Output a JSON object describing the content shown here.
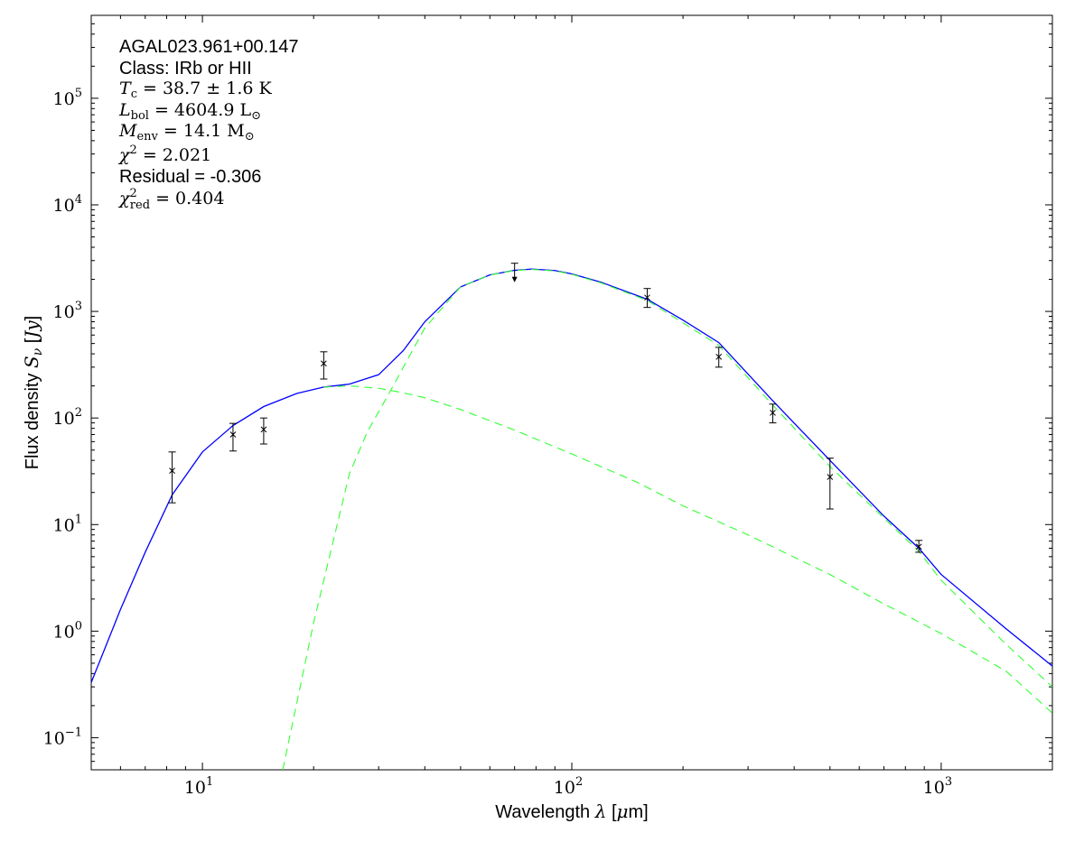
{
  "annotations": {
    "source_name": "AGAL023.961+00.147",
    "class_label": "Class: IRb or HII",
    "tc": {
      "symbol": "T",
      "sub": "c",
      "text": " = 38.7 ± 1.6 K"
    },
    "lbol": {
      "symbol": "L",
      "sub": "bol",
      "text": " = 4604.9 L",
      "unit_sub": "⊙"
    },
    "menv": {
      "symbol": "M",
      "sub": "env",
      "text": " = 14.1 M",
      "unit_sub": "⊙"
    },
    "chi2": {
      "symbol": "χ",
      "sup": "2",
      "text": " = 2.021"
    },
    "residual": "Residual = -0.306",
    "chi2_red": {
      "symbol": "χ",
      "sup": "2",
      "sub": "red",
      "text": " = 0.404"
    }
  },
  "axes": {
    "xlabel_pre": "Wavelength ",
    "xlabel_sym": "λ",
    "xlabel_post": " [",
    "xlabel_unit_sym": "μ",
    "xlabel_unit_post": "m]",
    "ylabel_pre": "Flux density ",
    "ylabel_sym": "S",
    "ylabel_sub": "ν",
    "ylabel_post": " [",
    "ylabel_unit": "Jy",
    "ylabel_close": "]",
    "x_tick_labels": [
      {
        "value": 10,
        "base": "10",
        "exp": "1"
      },
      {
        "value": 100,
        "base": "10",
        "exp": "2"
      },
      {
        "value": 1000,
        "base": "10",
        "exp": "3"
      }
    ],
    "y_tick_labels": [
      {
        "value": 0.1,
        "base": "10",
        "exp": "−1"
      },
      {
        "value": 1,
        "base": "10",
        "exp": "0"
      },
      {
        "value": 10,
        "base": "10",
        "exp": "1"
      },
      {
        "value": 100,
        "base": "10",
        "exp": "2"
      },
      {
        "value": 1000,
        "base": "10",
        "exp": "3"
      },
      {
        "value": 10000,
        "base": "10",
        "exp": "4"
      },
      {
        "value": 100000,
        "base": "10",
        "exp": "5"
      }
    ]
  },
  "colors": {
    "total_fit": "#0000ff",
    "component": "#33ff33",
    "points": "#000000"
  },
  "chart_data": {
    "type": "scatter",
    "xscale": "log",
    "yscale": "log",
    "xlim": [
      5,
      2000
    ],
    "ylim": [
      0.05,
      600000
    ],
    "grid": false,
    "points": [
      {
        "x": 8.28,
        "y": 32,
        "y_low": 16,
        "y_high": 48
      },
      {
        "x": 12.1,
        "y": 70,
        "y_low": 49,
        "y_high": 89
      },
      {
        "x": 14.65,
        "y": 78,
        "y_low": 57,
        "y_high": 100
      },
      {
        "x": 21.3,
        "y": 325,
        "y_low": 232,
        "y_high": 418
      },
      {
        "x": 70,
        "y": 2330,
        "upper_limit": true
      },
      {
        "x": 160,
        "y": 1350,
        "y_low": 1090,
        "y_high": 1640
      },
      {
        "x": 250,
        "y": 375,
        "y_low": 300,
        "y_high": 460
      },
      {
        "x": 350,
        "y": 112,
        "y_low": 90,
        "y_high": 135
      },
      {
        "x": 500,
        "y": 28,
        "y_low": 14,
        "y_high": 42
      },
      {
        "x": 870,
        "y": 6.2,
        "y_low": 5.5,
        "y_high": 7.1
      }
    ],
    "series": [
      {
        "style": "solid",
        "x": [
          5,
          6,
          7,
          8.28,
          10,
          12.1,
          14.65,
          18,
          21.3,
          25,
          30,
          35,
          40,
          50,
          60,
          70,
          78,
          90,
          100,
          120,
          160,
          200,
          250,
          350,
          500,
          700,
          870,
          1000,
          1500,
          2000
        ],
        "y": [
          0.33,
          1.6,
          5.5,
          19,
          48,
          85,
          128,
          170,
          195,
          208,
          255,
          430,
          800,
          1700,
          2200,
          2430,
          2500,
          2420,
          2250,
          1880,
          1300,
          830,
          510,
          145,
          40,
          12,
          6,
          3.4,
          1.05,
          0.47
        ]
      },
      {
        "style": "dashed",
        "x": [
          16.5,
          20,
          25,
          28,
          32,
          40,
          50,
          60,
          70,
          78,
          90,
          100,
          120,
          160,
          250,
          350,
          500,
          870,
          1000,
          1500,
          2000
        ],
        "y": [
          0.05,
          1.2,
          30,
          75,
          170,
          700,
          1700,
          2200,
          2420,
          2480,
          2400,
          2230,
          1850,
          1270,
          480,
          132,
          35,
          5.6,
          3.0,
          0.75,
          0.3
        ]
      },
      {
        "style": "dashed",
        "x": [
          21.3,
          25,
          30,
          35,
          40,
          50,
          70,
          100,
          150,
          200,
          300,
          500,
          700,
          1000,
          1500,
          2000
        ],
        "y": [
          195,
          200,
          190,
          172,
          155,
          120,
          77,
          46,
          25,
          15,
          8,
          3.4,
          1.8,
          0.95,
          0.42,
          0.17
        ]
      }
    ]
  }
}
